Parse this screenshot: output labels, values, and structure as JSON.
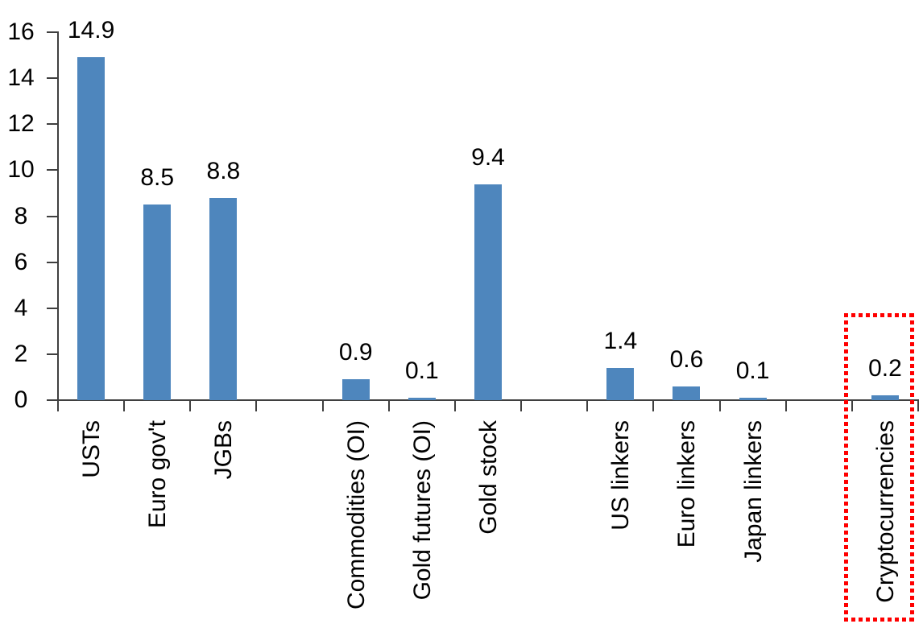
{
  "chart_data": {
    "type": "bar",
    "title": "",
    "xlabel": "",
    "ylabel": "",
    "categories": [
      "USTs",
      "Euro gov't",
      "JGBs",
      "",
      "Commodities (OI)",
      "Gold futures (OI)",
      "Gold stock",
      "",
      "US linkers",
      "Euro linkers",
      "Japan linkers",
      "",
      "Cryptocurrencies"
    ],
    "values": [
      14.9,
      8.5,
      8.8,
      null,
      0.9,
      0.1,
      9.4,
      null,
      1.4,
      0.6,
      0.1,
      null,
      0.2
    ],
    "data_labels": [
      "14.9",
      "8.5",
      "8.8",
      "",
      "0.9",
      "0.1",
      "9.4",
      "",
      "1.4",
      "0.6",
      "0.1",
      "",
      "0.2"
    ],
    "ylim": [
      0,
      16
    ],
    "yticks": [
      "0",
      "2",
      "4",
      "6",
      "8",
      "10",
      "12",
      "14",
      "16"
    ],
    "grid": "off",
    "legend": "none",
    "bar_color": "#4e86bd",
    "axis_color": "#3f3f3f",
    "label_color": "#000000",
    "highlight": {
      "category": "Cryptocurrencies",
      "style": "red-dotted-box",
      "color": "#ff0000"
    }
  }
}
